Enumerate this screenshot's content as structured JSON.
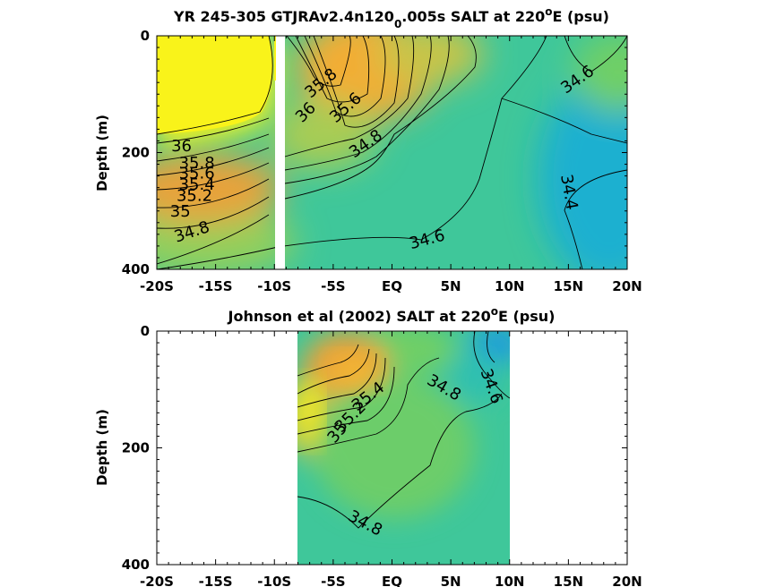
{
  "chart_data": [
    {
      "type": "heatmap",
      "title_parts": [
        "YR 245-305 GTJRAv2.4n120",
        "0",
        ".005s SALT at 220",
        "o",
        "E (psu)"
      ],
      "ylabel": "Depth (m)",
      "xlim": [
        -20,
        20
      ],
      "ylim": [
        0,
        400
      ],
      "y_reversed": true,
      "x_ticks": [
        -20,
        -15,
        -10,
        -5,
        0,
        5,
        10,
        15,
        20
      ],
      "x_tick_labels": [
        "-20S",
        "-15S",
        "-10S",
        "-5S",
        "EQ",
        "5N",
        "10N",
        "15N",
        "20N"
      ],
      "y_ticks": [
        0,
        200,
        400
      ],
      "y_tick_labels": [
        "0",
        "200",
        "400"
      ],
      "colors": {
        "s34.2": "#1a8ee8",
        "s34.4": "#1bb0d0",
        "s34.6": "#35c5a5",
        "s34.8": "#4cc98c",
        "s35.0": "#8fcf60",
        "s35.4": "#e3a83a",
        "s35.8": "#f7b533",
        "s36.0": "#f9f21c"
      },
      "labels": [
        {
          "text": "36",
          "x": -17.9,
          "y": 190,
          "rot": 0
        },
        {
          "text": "35.8",
          "x": -16.6,
          "y": 219,
          "rot": 0
        },
        {
          "text": "35.6",
          "x": -16.6,
          "y": 237,
          "rot": 0
        },
        {
          "text": "35.4",
          "x": -16.6,
          "y": 256,
          "rot": 0
        },
        {
          "text": "35.2",
          "x": -16.8,
          "y": 275,
          "rot": 0
        },
        {
          "text": "35",
          "x": -18.0,
          "y": 302,
          "rot": 0
        },
        {
          "text": "34.8",
          "x": -17.0,
          "y": 337,
          "rot": -18
        },
        {
          "text": "35.8",
          "x": -6.0,
          "y": 82,
          "rot": -40
        },
        {
          "text": "36",
          "x": -7.3,
          "y": 132,
          "rot": -45
        },
        {
          "text": "35.6",
          "x": -3.9,
          "y": 124,
          "rot": -42
        },
        {
          "text": "34.8",
          "x": -2.2,
          "y": 186,
          "rot": -35
        },
        {
          "text": "34.6",
          "x": 3.0,
          "y": 350,
          "rot": -15
        },
        {
          "text": "34.6",
          "x": 15.8,
          "y": 76,
          "rot": -35
        },
        {
          "text": "34.4",
          "x": 15.0,
          "y": 268,
          "rot": 80
        }
      ],
      "masked": [
        {
          "x": [
            -10.3,
            -9.6
          ],
          "y": [
            80,
            400
          ]
        }
      ]
    },
    {
      "type": "heatmap",
      "title_parts": [
        "Johnson et al (2002) SALT at 220",
        "o",
        "E (psu)"
      ],
      "ylabel": "Depth (m)",
      "xlim": [
        -20,
        20
      ],
      "ylim": [
        0,
        400
      ],
      "y_reversed": true,
      "x_ticks": [
        -20,
        -15,
        -10,
        -5,
        0,
        5,
        10,
        15,
        20
      ],
      "x_tick_labels": [
        "-20S",
        "-15S",
        "-10S",
        "-5S",
        "EQ",
        "5N",
        "10N",
        "15N",
        "20N"
      ],
      "y_ticks": [
        0,
        200,
        400
      ],
      "y_tick_labels": [
        "0",
        "200",
        "400"
      ],
      "data_extent_x": [
        -8,
        10
      ],
      "labels": [
        {
          "text": "35.4",
          "x": -2.0,
          "y": 113,
          "rot": -38
        },
        {
          "text": "35.2",
          "x": -3.5,
          "y": 148,
          "rot": -45
        },
        {
          "text": "35",
          "x": -4.6,
          "y": 175,
          "rot": -50
        },
        {
          "text": "34.8",
          "x": 4.4,
          "y": 98,
          "rot": 30
        },
        {
          "text": "34.6",
          "x": 8.4,
          "y": 95,
          "rot": 70
        },
        {
          "text": "34.8",
          "x": -2.3,
          "y": 330,
          "rot": 28
        }
      ]
    }
  ]
}
